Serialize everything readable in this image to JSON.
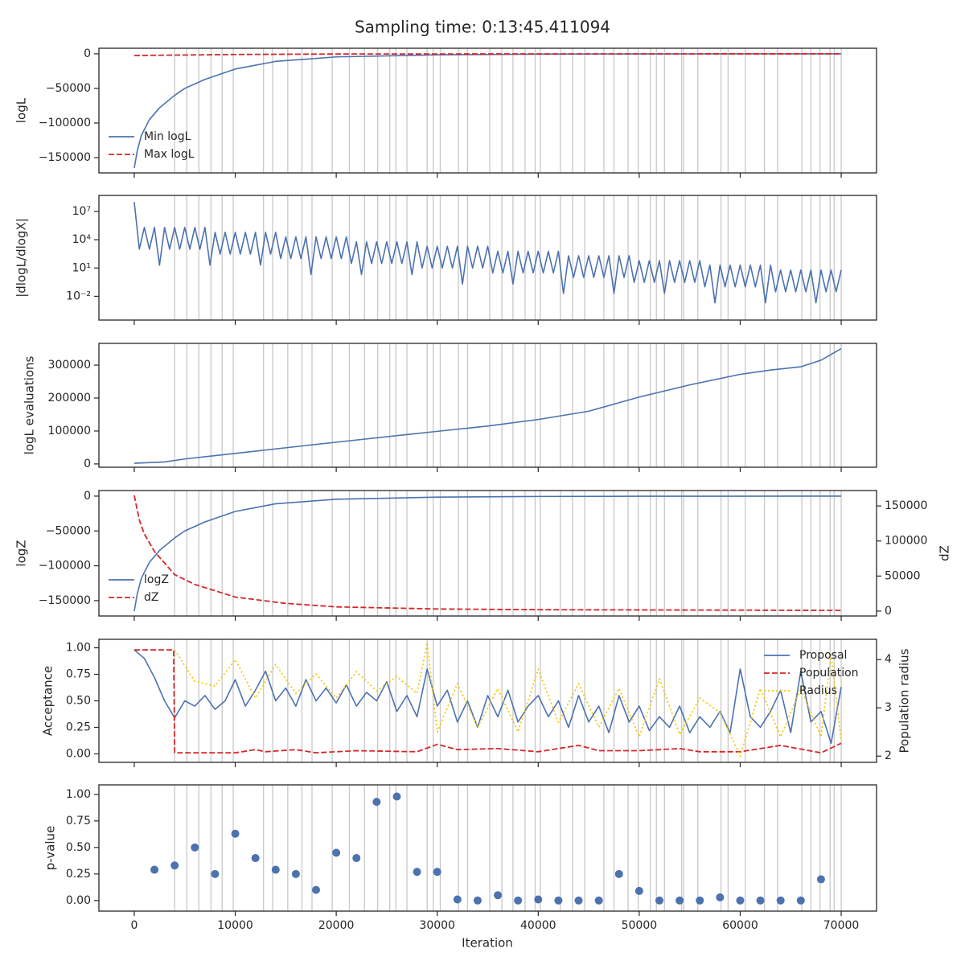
{
  "title": "Sampling time: 0:13:45.411094",
  "xlabel": "Iteration",
  "xlim": [
    -3500,
    73500
  ],
  "xticks": [
    0,
    10000,
    20000,
    30000,
    40000,
    50000,
    60000,
    70000
  ],
  "vlines": [
    4000,
    5200,
    6400,
    7600,
    8700,
    9800,
    12800,
    13700,
    15200,
    16600,
    17600,
    19600,
    21300,
    22800,
    24100,
    25300,
    25900,
    27000,
    29000,
    29600,
    30300,
    32100,
    33000,
    35200,
    36400,
    37500,
    38700,
    39700,
    40200,
    42200,
    43400,
    44600,
    46500,
    47500,
    48900,
    49900,
    51100,
    51700,
    52500,
    54200,
    54400,
    55800,
    58100,
    58800,
    60500,
    62400,
    63700,
    66100,
    67000,
    67900,
    68900,
    69300,
    70000
  ],
  "chart_data": [
    {
      "type": "line",
      "ylabel": "logL",
      "ylim": [
        -172000,
        8000
      ],
      "yticks": [
        {
          "value": -150000,
          "label": "−150000"
        },
        {
          "value": -100000,
          "label": "−100000"
        },
        {
          "value": -50000,
          "label": "−50000"
        },
        0
      ],
      "legend": "lower left",
      "series": [
        {
          "name": "Min logL",
          "color": "#4c72b0",
          "linestyle": "solid",
          "x": [
            0,
            300,
            700,
            1500,
            2500,
            4000,
            5000,
            7000,
            10000,
            14000,
            20000,
            30000,
            40000,
            50000,
            70000
          ],
          "values": [
            -165000,
            -140000,
            -118000,
            -95000,
            -78000,
            -60000,
            -50000,
            -37000,
            -22000,
            -11000,
            -4500,
            -1500,
            -500,
            -200,
            0
          ]
        },
        {
          "name": "Max logL",
          "color": "#d62728",
          "linestyle": "dashed",
          "x": [
            0,
            10000,
            20000,
            70000
          ],
          "values": [
            -2500,
            -1000,
            -300,
            0
          ]
        }
      ]
    },
    {
      "type": "line",
      "ylabel": "|dlogL/dlogX|",
      "log_scale": true,
      "ylim": [
        3e-05,
        500000000
      ],
      "yticks": [
        {
          "value": 0.01,
          "label": "10⁻²"
        },
        {
          "value": 10,
          "label": "10¹"
        },
        {
          "value": 10000,
          "label": "10⁴"
        },
        {
          "value": 10000000,
          "label": "10⁷"
        }
      ],
      "series": [
        {
          "color": "#4c72b0",
          "linestyle": "solid",
          "x": [
            0,
            500,
            1000,
            1500,
            2000,
            2500,
            3000,
            3500,
            4000,
            4500,
            5000,
            5500,
            6000,
            6500,
            7000,
            7500,
            8000,
            8500,
            9000,
            9500,
            10000,
            10500,
            11000,
            11500,
            12000,
            12500,
            13000,
            13500,
            14000,
            14500,
            15000,
            15500,
            16000,
            16500,
            17000,
            17500,
            18000,
            18500,
            19000,
            19500,
            20000,
            20500,
            21000,
            21500,
            22000,
            22500,
            23000,
            23500,
            24000,
            24500,
            25000,
            25500,
            26000,
            26500,
            27000,
            27500,
            28000,
            28500,
            29000,
            29500,
            30000,
            30500,
            31000,
            31500,
            32000,
            32500,
            33000,
            33500,
            34000,
            34500,
            35000,
            35500,
            36000,
            36500,
            37000,
            37500,
            38000,
            38500,
            39000,
            39500,
            40000,
            40500,
            41000,
            41500,
            42000,
            42500,
            43000,
            43500,
            44000,
            44500,
            45000,
            45500,
            46000,
            46500,
            47000,
            47500,
            48000,
            48500,
            49000,
            49500,
            50000,
            50500,
            51000,
            51500,
            52000,
            52500,
            53000,
            53500,
            54000,
            54500,
            55000,
            55500,
            56000,
            56500,
            57000,
            57500,
            58000,
            58500,
            59000,
            59500,
            60000,
            60500,
            61000,
            61500,
            62000,
            62500,
            63000,
            63500,
            64000,
            64500,
            65000,
            65500,
            66000,
            66500,
            67000,
            67500,
            68000,
            68500,
            69000,
            69500,
            70000
          ],
          "values": [
            100000000,
            1000,
            200000,
            1000,
            200000,
            20,
            200000,
            1000,
            200000,
            1000,
            200000,
            1000,
            200000,
            1000,
            200000,
            20,
            60000,
            300,
            60000,
            300,
            60000,
            300,
            60000,
            300,
            60000,
            20,
            60000,
            300,
            60000,
            100,
            20000,
            100,
            20000,
            100,
            20000,
            2,
            20000,
            100,
            20000,
            100,
            20000,
            100,
            20000,
            30,
            6000,
            2,
            6000,
            30,
            6000,
            30,
            6000,
            30,
            6000,
            30,
            6000,
            2,
            6000,
            10,
            2000,
            10,
            2000,
            10,
            2000,
            10,
            2000,
            0.2,
            2000,
            10,
            2000,
            10,
            2000,
            3,
            600,
            3,
            600,
            0.2,
            600,
            3,
            600,
            3,
            600,
            3,
            600,
            3,
            600,
            0.02,
            200,
            1,
            200,
            1,
            200,
            1,
            200,
            1,
            200,
            0.02,
            200,
            1,
            200,
            0.3,
            60,
            0.3,
            60,
            0.3,
            60,
            0.02,
            60,
            0.3,
            60,
            0.3,
            60,
            0.3,
            60,
            0.1,
            20,
            0.002,
            20,
            0.1,
            20,
            0.1,
            20,
            0.1,
            20,
            0.1,
            20,
            0.002,
            20,
            0.03,
            6,
            0.03,
            6,
            0.03,
            6,
            0.03,
            6,
            0.002,
            6,
            0.03,
            6,
            0.03,
            6
          ]
        }
      ]
    },
    {
      "type": "line",
      "ylabel": "logL evaluations",
      "ylim": [
        -10000,
        366000
      ],
      "yticks": [
        0,
        100000,
        200000,
        300000
      ],
      "series": [
        {
          "color": "#4c72b0",
          "linestyle": "solid",
          "x": [
            0,
            3000,
            5000,
            10000,
            20000,
            30000,
            35000,
            40000,
            45000,
            50000,
            55000,
            60000,
            63000,
            66000,
            68000,
            70000
          ],
          "values": [
            2000,
            6000,
            15000,
            32000,
            66000,
            99000,
            115000,
            135000,
            160000,
            203000,
            240000,
            272000,
            285000,
            295000,
            315000,
            350000
          ]
        }
      ]
    },
    {
      "type": "line",
      "ylabel": "logZ",
      "y2label": "dZ",
      "ylim": [
        -172000,
        8000
      ],
      "y2lim": [
        -7000,
        172000
      ],
      "yticks": [
        {
          "value": -150000,
          "label": "−150000"
        },
        {
          "value": -100000,
          "label": "−100000"
        },
        {
          "value": -50000,
          "label": "−50000"
        },
        0
      ],
      "y2ticks": [
        0,
        50000,
        100000,
        150000
      ],
      "legend": "lower left",
      "series": [
        {
          "name": "logZ",
          "color": "#4c72b0",
          "linestyle": "solid",
          "x": [
            0,
            300,
            700,
            1500,
            2500,
            4000,
            5000,
            7000,
            10000,
            14000,
            20000,
            30000,
            40000,
            50000,
            70000
          ],
          "values": [
            -165000,
            -140000,
            -118000,
            -95000,
            -78000,
            -60000,
            -50000,
            -37000,
            -22000,
            -11000,
            -4500,
            -1500,
            -500,
            -200,
            0
          ]
        },
        {
          "name": "dZ",
          "color": "#d62728",
          "linestyle": "dashed",
          "axis": "y2",
          "x": [
            0,
            500,
            1000,
            2000,
            4000,
            6000,
            10000,
            15000,
            20000,
            30000,
            40000,
            70000
          ],
          "values": [
            165000,
            130000,
            110000,
            85000,
            52000,
            38000,
            20000,
            11000,
            6000,
            3000,
            2000,
            1000
          ]
        }
      ]
    },
    {
      "type": "line",
      "ylabel": "Acceptance",
      "y2label": "Population radius",
      "ylim": [
        -0.08,
        1.08
      ],
      "y2lim": [
        1.87,
        4.42
      ],
      "yticks": [
        {
          "value": 0,
          "label": "0.00"
        },
        {
          "value": 0.25,
          "label": "0.25"
        },
        {
          "value": 0.5,
          "label": "0.50"
        },
        {
          "value": 0.75,
          "label": "0.75"
        },
        {
          "value": 1,
          "label": "1.00"
        }
      ],
      "y2ticks": [
        2,
        3,
        4
      ],
      "legend": "upper right",
      "series": [
        {
          "name": "Proposal",
          "color": "#4c72b0",
          "linestyle": "solid",
          "x": [
            0,
            1000,
            2000,
            3000,
            4000,
            5000,
            6000,
            7000,
            8000,
            9000,
            10000,
            11000,
            12000,
            13000,
            14000,
            15000,
            16000,
            17000,
            18000,
            19000,
            20000,
            21000,
            22000,
            23000,
            24000,
            25000,
            26000,
            27000,
            28000,
            29000,
            30000,
            31000,
            32000,
            33000,
            34000,
            35000,
            36000,
            37000,
            38000,
            39000,
            40000,
            41000,
            42000,
            43000,
            44000,
            45000,
            46000,
            47000,
            48000,
            49000,
            50000,
            51000,
            52000,
            53000,
            54000,
            55000,
            56000,
            57000,
            58000,
            59000,
            60000,
            61000,
            62000,
            63000,
            64000,
            65000,
            66000,
            67000,
            68000,
            69000,
            70000
          ],
          "values": [
            0.98,
            0.9,
            0.72,
            0.5,
            0.34,
            0.5,
            0.45,
            0.55,
            0.42,
            0.5,
            0.7,
            0.45,
            0.6,
            0.78,
            0.5,
            0.62,
            0.45,
            0.7,
            0.5,
            0.62,
            0.48,
            0.65,
            0.45,
            0.58,
            0.5,
            0.68,
            0.4,
            0.55,
            0.35,
            0.8,
            0.45,
            0.6,
            0.3,
            0.5,
            0.25,
            0.55,
            0.35,
            0.6,
            0.3,
            0.45,
            0.55,
            0.35,
            0.5,
            0.25,
            0.55,
            0.3,
            0.45,
            0.2,
            0.55,
            0.3,
            0.45,
            0.22,
            0.35,
            0.25,
            0.45,
            0.2,
            0.35,
            0.25,
            0.4,
            0.2,
            0.8,
            0.35,
            0.25,
            0.4,
            0.6,
            0.2,
            0.78,
            0.3,
            0.4,
            0.1,
            0.63
          ]
        },
        {
          "name": "Population",
          "color": "#d62728",
          "linestyle": "dashed",
          "x": [
            0,
            3900,
            4000,
            10000,
            12000,
            13000,
            16000,
            18000,
            22000,
            28000,
            30000,
            32000,
            36000,
            40000,
            44000,
            46000,
            50000,
            54000,
            56000,
            60000,
            64000,
            68000,
            70000
          ],
          "values": [
            0.98,
            0.98,
            0.01,
            0.01,
            0.04,
            0.02,
            0.04,
            0.01,
            0.03,
            0.02,
            0.09,
            0.04,
            0.05,
            0.02,
            0.08,
            0.03,
            0.03,
            0.05,
            0.02,
            0.02,
            0.08,
            0.01,
            0.1
          ]
        },
        {
          "name": "Radius",
          "color": "#f2c80f",
          "linestyle": "dotted",
          "axis": "y2",
          "x": [
            4000,
            6000,
            8000,
            10000,
            12000,
            14000,
            16000,
            18000,
            20000,
            22000,
            24000,
            26000,
            28000,
            29000,
            30000,
            32000,
            34000,
            36000,
            38000,
            40000,
            42000,
            44000,
            46000,
            48000,
            50000,
            52000,
            54000,
            56000,
            58000,
            60000,
            62000,
            64000,
            66000,
            68000,
            69000,
            70000
          ],
          "values": [
            4.2,
            3.55,
            3.45,
            4.0,
            3.2,
            3.9,
            3.3,
            3.7,
            3.2,
            3.75,
            3.35,
            3.65,
            3.3,
            4.35,
            2.5,
            3.5,
            2.6,
            3.4,
            2.5,
            3.8,
            2.7,
            3.5,
            2.6,
            3.4,
            2.4,
            3.6,
            2.45,
            3.2,
            2.9,
            2.0,
            3.4,
            2.4,
            3.4,
            2.4,
            4.1,
            2.3
          ]
        }
      ]
    },
    {
      "type": "scatter",
      "ylabel": "p-value",
      "ylim": [
        -0.1,
        1.09
      ],
      "yticks": [
        {
          "value": 0,
          "label": "0.00"
        },
        {
          "value": 0.25,
          "label": "0.25"
        },
        {
          "value": 0.5,
          "label": "0.50"
        },
        {
          "value": 0.75,
          "label": "0.75"
        },
        {
          "value": 1,
          "label": "1.00"
        }
      ],
      "series": [
        {
          "color": "#4c72b0",
          "x": [
            2000,
            4000,
            6000,
            8000,
            10000,
            12000,
            14000,
            16000,
            18000,
            20000,
            22000,
            24000,
            26000,
            28000,
            30000,
            32000,
            34000,
            36000,
            38000,
            40000,
            42000,
            44000,
            46000,
            48000,
            50000,
            52000,
            54000,
            56000,
            58000,
            60000,
            62000,
            64000,
            66000,
            68000
          ],
          "values": [
            0.29,
            0.33,
            0.5,
            0.25,
            0.63,
            0.4,
            0.29,
            0.25,
            0.1,
            0.45,
            0.4,
            0.93,
            0.98,
            0.27,
            0.27,
            0.01,
            0,
            0.05,
            0,
            0.01,
            0,
            0,
            0,
            0.25,
            0.09,
            0,
            0,
            0,
            0.03,
            0,
            0,
            0,
            0,
            0.2
          ]
        }
      ]
    }
  ]
}
